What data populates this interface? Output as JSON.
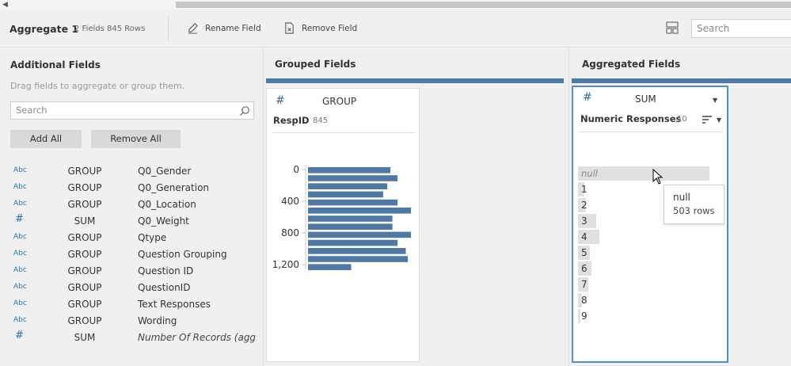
{
  "toolbar": {
    "title": "Aggregate 1",
    "meta": "2 Fields  845 Rows",
    "rename_label": "Rename Field",
    "remove_label": "Remove Field",
    "search_placeholder": "Search"
  },
  "additional": {
    "title": "Additional Fields",
    "hint": "Drag fields to aggregate or group them.",
    "search_placeholder": "Search",
    "add_all": "Add All",
    "remove_all": "Remove All",
    "fields": [
      {
        "type": "Abc",
        "agg": "GROUP",
        "name": "Q0_Gender"
      },
      {
        "type": "Abc",
        "agg": "GROUP",
        "name": "Q0_Generation"
      },
      {
        "type": "Abc",
        "agg": "GROUP",
        "name": "Q0_Location"
      },
      {
        "type": "#",
        "agg": "SUM",
        "name": "Q0_Weight"
      },
      {
        "type": "Abc",
        "agg": "GROUP",
        "name": "Qtype"
      },
      {
        "type": "Abc",
        "agg": "GROUP",
        "name": "Question Grouping"
      },
      {
        "type": "Abc",
        "agg": "GROUP",
        "name": "Question ID"
      },
      {
        "type": "Abc",
        "agg": "GROUP",
        "name": "QuestionID"
      },
      {
        "type": "Abc",
        "agg": "GROUP",
        "name": "Text Responses"
      },
      {
        "type": "Abc",
        "agg": "GROUP",
        "name": "Wording"
      },
      {
        "type": "#",
        "agg": "SUM",
        "name": "Number Of Records (agg..."
      }
    ]
  },
  "grouped": {
    "title": "Grouped Fields",
    "card": {
      "type": "#",
      "agg": "GROUP",
      "field": "RespID",
      "count": "845",
      "ticks": [
        "0",
        "400",
        "800",
        "1,200"
      ],
      "bar_fractions": [
        0.8,
        0.87,
        0.77,
        0.73,
        0.87,
        1.0,
        0.82,
        0.82,
        1.0,
        0.87,
        0.95,
        0.97,
        0.42
      ]
    }
  },
  "aggregated": {
    "title": "Aggregated Fields",
    "card": {
      "type": "#",
      "agg": "SUM",
      "field": "Numeric Responses",
      "count": "10",
      "values": [
        {
          "label": "null",
          "fraction": 1.0
        },
        {
          "label": "1",
          "fraction": 0.05
        },
        {
          "label": "2",
          "fraction": 0.06
        },
        {
          "label": "3",
          "fraction": 0.14
        },
        {
          "label": "4",
          "fraction": 0.16
        },
        {
          "label": "5",
          "fraction": 0.09
        },
        {
          "label": "6",
          "fraction": 0.1
        },
        {
          "label": "7",
          "fraction": 0.08
        },
        {
          "label": "8",
          "fraction": 0.03
        },
        {
          "label": "9",
          "fraction": 0.02
        }
      ]
    },
    "tooltip": {
      "title": "null",
      "rows": "503 rows"
    }
  },
  "colors": {
    "accent": "#4e79a7",
    "selected_border": "#4e8fc7",
    "type_icon": "#1f77b4"
  }
}
